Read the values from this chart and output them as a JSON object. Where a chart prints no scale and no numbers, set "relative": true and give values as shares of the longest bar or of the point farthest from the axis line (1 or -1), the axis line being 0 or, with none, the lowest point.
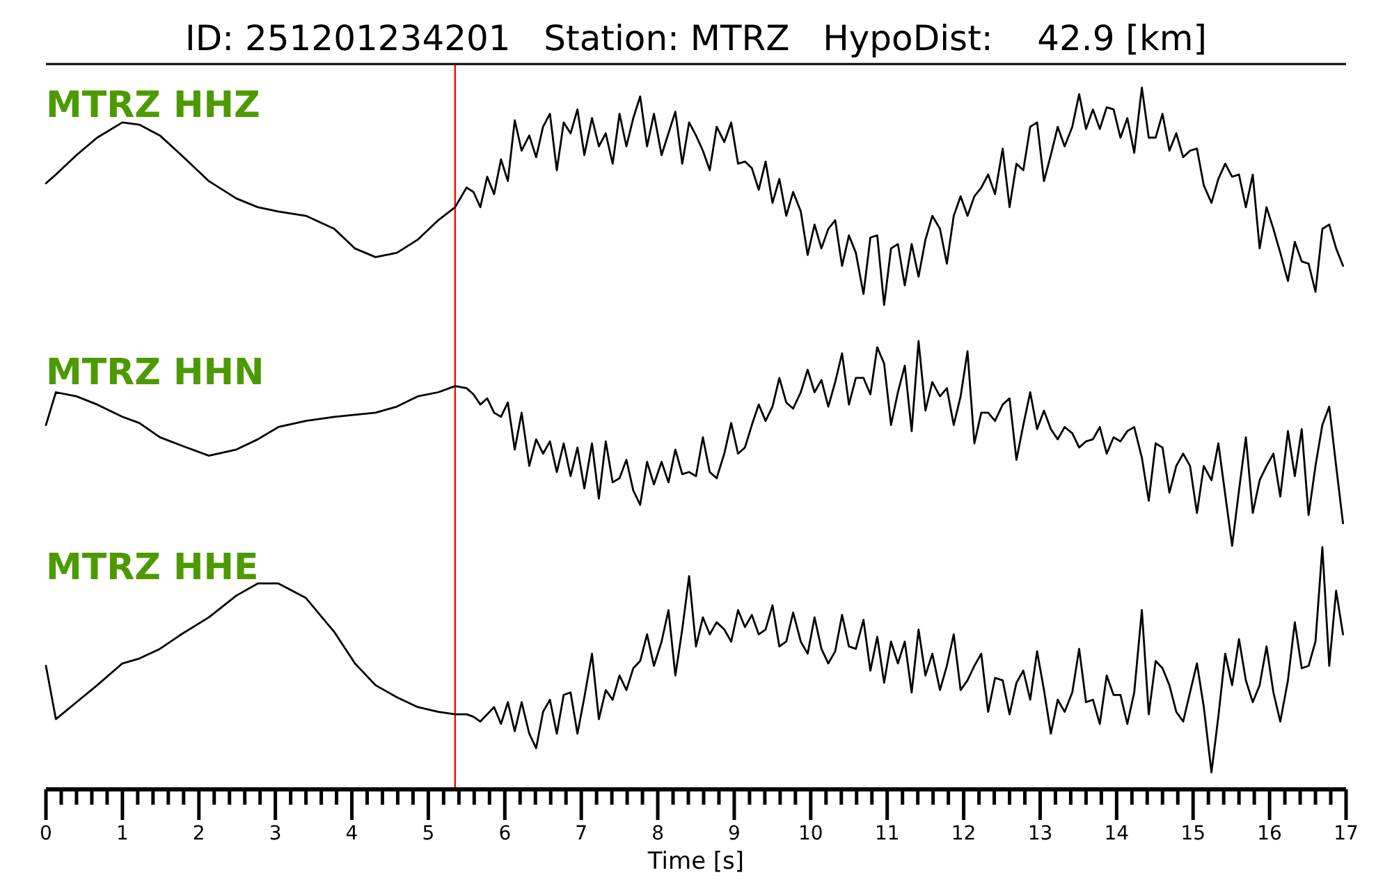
{
  "chart_data": [
    {
      "type": "line",
      "title": "ID: 251201234201   Station: MTRZ   HypoDist:    42.9 [km]",
      "relative": true,
      "xlim": [
        0,
        17
      ],
      "x": [
        0,
        0.13,
        0.4,
        0.67,
        1.0,
        1.22,
        1.49,
        1.77,
        2.13,
        2.49,
        2.77,
        3.04,
        3.4,
        3.77,
        4.04,
        4.31,
        4.59,
        4.86,
        5.13,
        5.35,
        5.5,
        5.59,
        5.68,
        5.77,
        5.86,
        5.95,
        6.04,
        6.13,
        6.22,
        6.32,
        6.41,
        6.5,
        6.59,
        6.68,
        6.77,
        6.86,
        6.95,
        7.04,
        7.14,
        7.23,
        7.32,
        7.41,
        7.5,
        7.59,
        7.68,
        7.77,
        7.86,
        7.95,
        8.05,
        8.14,
        8.23,
        8.32,
        8.41,
        8.5,
        8.59,
        8.68,
        8.77,
        8.87,
        8.96,
        9.05,
        9.14,
        9.23,
        9.32,
        9.41,
        9.5,
        9.59,
        9.68,
        9.77,
        9.87,
        9.96,
        10.05,
        10.14,
        10.23,
        10.32,
        10.41,
        10.5,
        10.59,
        10.69,
        10.78,
        10.87,
        10.96,
        11.05,
        11.14,
        11.23,
        11.32,
        11.41,
        11.5,
        11.59,
        11.69,
        11.78,
        11.87,
        11.96,
        12.05,
        12.14,
        12.23,
        12.32,
        12.41,
        12.51,
        12.6,
        12.69,
        12.78,
        12.87,
        12.96,
        13.05,
        13.14,
        13.23,
        13.32,
        13.42,
        13.51,
        13.6,
        13.69,
        13.78,
        13.87,
        13.96,
        14.05,
        14.14,
        14.23,
        14.33,
        14.42,
        14.51,
        14.6,
        14.69,
        14.78,
        14.87,
        14.96,
        15.05,
        15.14,
        15.24,
        15.33,
        15.42,
        15.51,
        15.6,
        15.69,
        15.78,
        15.87,
        15.96,
        16.05,
        16.14,
        16.24,
        16.33,
        16.42,
        16.51,
        16.6,
        16.69,
        16.78,
        16.87,
        16.96
      ],
      "series": [
        {
          "name": "MTRZ HHZ",
          "color": "#000000",
          "values": [
            0.56,
            0.6,
            0.69,
            0.77,
            0.84,
            0.83,
            0.78,
            0.69,
            0.57,
            0.49,
            0.45,
            0.43,
            0.41,
            0.35,
            0.26,
            0.22,
            0.24,
            0.3,
            0.39,
            0.45,
            0.54,
            0.52,
            0.45,
            0.59,
            0.51,
            0.67,
            0.57,
            0.85,
            0.71,
            0.78,
            0.68,
            0.82,
            0.88,
            0.62,
            0.84,
            0.79,
            0.9,
            0.69,
            0.86,
            0.73,
            0.79,
            0.65,
            0.88,
            0.73,
            0.86,
            0.96,
            0.73,
            0.88,
            0.69,
            0.79,
            0.89,
            0.65,
            0.84,
            0.78,
            0.71,
            0.62,
            0.82,
            0.75,
            0.84,
            0.65,
            0.66,
            0.63,
            0.53,
            0.66,
            0.47,
            0.58,
            0.41,
            0.52,
            0.43,
            0.23,
            0.37,
            0.26,
            0.35,
            0.39,
            0.18,
            0.32,
            0.24,
            0.05,
            0.31,
            0.32,
            0.0,
            0.26,
            0.28,
            0.09,
            0.28,
            0.13,
            0.3,
            0.41,
            0.35,
            0.19,
            0.41,
            0.5,
            0.41,
            0.5,
            0.54,
            0.6,
            0.51,
            0.72,
            0.45,
            0.65,
            0.62,
            0.82,
            0.84,
            0.57,
            0.69,
            0.82,
            0.73,
            0.82,
            0.97,
            0.81,
            0.9,
            0.81,
            0.91,
            0.9,
            0.77,
            0.86,
            0.7,
            1.0,
            0.77,
            0.77,
            0.88,
            0.71,
            0.79,
            0.68,
            0.71,
            0.72,
            0.55,
            0.47,
            0.58,
            0.65,
            0.59,
            0.6,
            0.45,
            0.6,
            0.26,
            0.45,
            0.35,
            0.24,
            0.11,
            0.29,
            0.2,
            0.19,
            0.06,
            0.35,
            0.37,
            0.26,
            0.18
          ]
        }
      ],
      "ref_lines": [
        {
          "axis": "x",
          "value": 5.35,
          "color": "#ff0000"
        }
      ]
    },
    {
      "type": "line",
      "relative": true,
      "xlim": [
        0,
        17
      ],
      "x": [
        0,
        0.13,
        0.4,
        0.67,
        1.0,
        1.22,
        1.49,
        1.77,
        2.13,
        2.49,
        2.77,
        3.04,
        3.4,
        3.77,
        4.04,
        4.31,
        4.59,
        4.86,
        5.13,
        5.35,
        5.5,
        5.59,
        5.68,
        5.77,
        5.86,
        5.95,
        6.04,
        6.13,
        6.22,
        6.32,
        6.41,
        6.5,
        6.59,
        6.68,
        6.77,
        6.86,
        6.95,
        7.04,
        7.14,
        7.23,
        7.32,
        7.41,
        7.5,
        7.59,
        7.68,
        7.77,
        7.86,
        7.95,
        8.05,
        8.14,
        8.23,
        8.32,
        8.41,
        8.5,
        8.59,
        8.68,
        8.77,
        8.87,
        8.96,
        9.05,
        9.14,
        9.23,
        9.32,
        9.41,
        9.5,
        9.59,
        9.68,
        9.77,
        9.87,
        9.96,
        10.05,
        10.14,
        10.23,
        10.32,
        10.41,
        10.5,
        10.59,
        10.69,
        10.78,
        10.87,
        10.96,
        11.05,
        11.14,
        11.23,
        11.32,
        11.41,
        11.5,
        11.59,
        11.69,
        11.78,
        11.87,
        11.96,
        12.05,
        12.14,
        12.23,
        12.32,
        12.41,
        12.51,
        12.6,
        12.69,
        12.78,
        12.87,
        12.96,
        13.05,
        13.14,
        13.23,
        13.32,
        13.42,
        13.51,
        13.6,
        13.69,
        13.78,
        13.87,
        13.96,
        14.05,
        14.14,
        14.23,
        14.33,
        14.42,
        14.51,
        14.6,
        14.69,
        14.78,
        14.87,
        14.96,
        15.05,
        15.14,
        15.24,
        15.33,
        15.42,
        15.51,
        15.6,
        15.69,
        15.78,
        15.87,
        15.96,
        16.05,
        16.14,
        16.24,
        16.33,
        16.42,
        16.51,
        16.6,
        16.69,
        16.78,
        16.87,
        16.96
      ],
      "series": [
        {
          "name": "MTRZ HHN",
          "color": "#000000",
          "values": [
            0.59,
            0.75,
            0.73,
            0.69,
            0.63,
            0.6,
            0.53,
            0.49,
            0.44,
            0.47,
            0.52,
            0.58,
            0.61,
            0.63,
            0.64,
            0.65,
            0.68,
            0.73,
            0.75,
            0.78,
            0.77,
            0.74,
            0.69,
            0.72,
            0.65,
            0.63,
            0.7,
            0.47,
            0.65,
            0.39,
            0.52,
            0.45,
            0.51,
            0.36,
            0.5,
            0.34,
            0.48,
            0.28,
            0.5,
            0.23,
            0.51,
            0.31,
            0.33,
            0.42,
            0.27,
            0.2,
            0.41,
            0.3,
            0.41,
            0.31,
            0.47,
            0.35,
            0.36,
            0.34,
            0.53,
            0.36,
            0.33,
            0.45,
            0.6,
            0.45,
            0.48,
            0.59,
            0.69,
            0.61,
            0.68,
            0.82,
            0.7,
            0.67,
            0.75,
            0.86,
            0.75,
            0.81,
            0.68,
            0.8,
            0.94,
            0.69,
            0.82,
            0.82,
            0.74,
            0.97,
            0.89,
            0.59,
            0.75,
            0.88,
            0.56,
            1.0,
            0.66,
            0.8,
            0.73,
            0.77,
            0.59,
            0.73,
            0.95,
            0.5,
            0.65,
            0.65,
            0.61,
            0.69,
            0.72,
            0.42,
            0.59,
            0.75,
            0.57,
            0.66,
            0.57,
            0.52,
            0.58,
            0.55,
            0.48,
            0.51,
            0.52,
            0.58,
            0.45,
            0.53,
            0.51,
            0.56,
            0.58,
            0.43,
            0.22,
            0.5,
            0.48,
            0.26,
            0.39,
            0.45,
            0.39,
            0.16,
            0.39,
            0.32,
            0.5,
            0.25,
            0.0,
            0.27,
            0.53,
            0.16,
            0.32,
            0.39,
            0.45,
            0.24,
            0.56,
            0.34,
            0.57,
            0.15,
            0.39,
            0.59,
            0.68,
            0.39,
            0.11
          ]
        }
      ],
      "ref_lines": [
        {
          "axis": "x",
          "value": 5.35,
          "color": "#ff0000"
        }
      ]
    },
    {
      "type": "line",
      "relative": true,
      "xlim": [
        0,
        17
      ],
      "xlabel": "Time [s]",
      "xticks": [
        0,
        {
          "value": 0.2,
          "label": null
        },
        {
          "value": 0.4,
          "label": null
        },
        {
          "value": 0.6,
          "label": null
        },
        {
          "value": 0.8,
          "label": null
        },
        1,
        {
          "value": 1.2,
          "label": null
        },
        {
          "value": 1.4,
          "label": null
        },
        {
          "value": 1.6,
          "label": null
        },
        {
          "value": 1.8,
          "label": null
        },
        2,
        {
          "value": 2.2,
          "label": null
        },
        {
          "value": 2.4,
          "label": null
        },
        {
          "value": 2.6,
          "label": null
        },
        {
          "value": 2.8,
          "label": null
        },
        3,
        {
          "value": 3.2,
          "label": null
        },
        {
          "value": 3.4,
          "label": null
        },
        {
          "value": 3.6,
          "label": null
        },
        {
          "value": 3.8,
          "label": null
        },
        4,
        {
          "value": 4.2,
          "label": null
        },
        {
          "value": 4.4,
          "label": null
        },
        {
          "value": 4.6,
          "label": null
        },
        {
          "value": 4.8,
          "label": null
        },
        5,
        {
          "value": 5.2,
          "label": null
        },
        {
          "value": 5.4,
          "label": null
        },
        {
          "value": 5.6,
          "label": null
        },
        {
          "value": 5.8,
          "label": null
        },
        6,
        {
          "value": 6.2,
          "label": null
        },
        {
          "value": 6.4,
          "label": null
        },
        {
          "value": 6.6,
          "label": null
        },
        {
          "value": 6.8,
          "label": null
        },
        7,
        {
          "value": 7.2,
          "label": null
        },
        {
          "value": 7.4,
          "label": null
        },
        {
          "value": 7.6,
          "label": null
        },
        {
          "value": 7.8,
          "label": null
        },
        8,
        {
          "value": 8.2,
          "label": null
        },
        {
          "value": 8.4,
          "label": null
        },
        {
          "value": 8.6,
          "label": null
        },
        {
          "value": 8.8,
          "label": null
        },
        9,
        {
          "value": 9.2,
          "label": null
        },
        {
          "value": 9.4,
          "label": null
        },
        {
          "value": 9.6,
          "label": null
        },
        {
          "value": 9.8,
          "label": null
        },
        10,
        {
          "value": 10.2,
          "label": null
        },
        {
          "value": 10.4,
          "label": null
        },
        {
          "value": 10.6,
          "label": null
        },
        {
          "value": 10.8,
          "label": null
        },
        11,
        {
          "value": 11.2,
          "label": null
        },
        {
          "value": 11.4,
          "label": null
        },
        {
          "value": 11.6,
          "label": null
        },
        {
          "value": 11.8,
          "label": null
        },
        12,
        {
          "value": 12.2,
          "label": null
        },
        {
          "value": 12.4,
          "label": null
        },
        {
          "value": 12.6,
          "label": null
        },
        {
          "value": 12.8,
          "label": null
        },
        13,
        {
          "value": 13.2,
          "label": null
        },
        {
          "value": 13.4,
          "label": null
        },
        {
          "value": 13.6,
          "label": null
        },
        {
          "value": 13.8,
          "label": null
        },
        14,
        {
          "value": 14.2,
          "label": null
        },
        {
          "value": 14.4,
          "label": null
        },
        {
          "value": 14.6,
          "label": null
        },
        {
          "value": 14.8,
          "label": null
        },
        15,
        {
          "value": 15.2,
          "label": null
        },
        {
          "value": 15.4,
          "label": null
        },
        {
          "value": 15.6,
          "label": null
        },
        {
          "value": 15.8,
          "label": null
        },
        16,
        {
          "value": 16.2,
          "label": null
        },
        {
          "value": 16.4,
          "label": null
        },
        {
          "value": 16.6,
          "label": null
        },
        {
          "value": 16.8,
          "label": null
        },
        17
      ],
      "x": [
        0,
        0.13,
        0.4,
        0.67,
        1.0,
        1.22,
        1.49,
        1.77,
        2.13,
        2.49,
        2.77,
        3.04,
        3.4,
        3.77,
        4.04,
        4.31,
        4.59,
        4.86,
        5.13,
        5.35,
        5.5,
        5.59,
        5.68,
        5.77,
        5.86,
        5.95,
        6.04,
        6.13,
        6.22,
        6.32,
        6.41,
        6.5,
        6.59,
        6.68,
        6.77,
        6.86,
        6.95,
        7.04,
        7.14,
        7.23,
        7.32,
        7.41,
        7.5,
        7.59,
        7.68,
        7.77,
        7.86,
        7.95,
        8.05,
        8.14,
        8.23,
        8.32,
        8.41,
        8.5,
        8.59,
        8.68,
        8.77,
        8.87,
        8.96,
        9.05,
        9.14,
        9.23,
        9.32,
        9.41,
        9.5,
        9.59,
        9.68,
        9.77,
        9.87,
        9.96,
        10.05,
        10.14,
        10.23,
        10.32,
        10.41,
        10.5,
        10.59,
        10.69,
        10.78,
        10.87,
        10.96,
        11.05,
        11.14,
        11.23,
        11.32,
        11.41,
        11.5,
        11.59,
        11.69,
        11.78,
        11.87,
        11.96,
        12.05,
        12.14,
        12.23,
        12.32,
        12.41,
        12.51,
        12.6,
        12.69,
        12.78,
        12.87,
        12.96,
        13.05,
        13.14,
        13.23,
        13.32,
        13.42,
        13.51,
        13.6,
        13.69,
        13.78,
        13.87,
        13.96,
        14.05,
        14.14,
        14.23,
        14.33,
        14.42,
        14.51,
        14.6,
        14.69,
        14.78,
        14.87,
        14.96,
        15.05,
        15.14,
        15.24,
        15.33,
        15.42,
        15.51,
        15.6,
        15.69,
        15.78,
        15.87,
        15.96,
        16.05,
        16.14,
        16.24,
        16.33,
        16.42,
        16.51,
        16.6,
        16.69,
        16.78,
        16.87,
        16.96
      ],
      "series": [
        {
          "name": "MTRZ HHE",
          "color": "#000000",
          "values": [
            0.51,
            0.29,
            0.36,
            0.43,
            0.52,
            0.54,
            0.58,
            0.64,
            0.71,
            0.8,
            0.85,
            0.85,
            0.79,
            0.65,
            0.52,
            0.43,
            0.38,
            0.34,
            0.32,
            0.31,
            0.31,
            0.3,
            0.28,
            0.31,
            0.34,
            0.27,
            0.36,
            0.24,
            0.36,
            0.23,
            0.17,
            0.32,
            0.37,
            0.23,
            0.39,
            0.4,
            0.23,
            0.38,
            0.56,
            0.29,
            0.41,
            0.37,
            0.47,
            0.41,
            0.5,
            0.53,
            0.64,
            0.51,
            0.61,
            0.74,
            0.47,
            0.66,
            0.88,
            0.59,
            0.71,
            0.64,
            0.69,
            0.66,
            0.61,
            0.74,
            0.67,
            0.72,
            0.64,
            0.66,
            0.76,
            0.59,
            0.61,
            0.73,
            0.61,
            0.56,
            0.71,
            0.58,
            0.52,
            0.57,
            0.72,
            0.59,
            0.58,
            0.7,
            0.49,
            0.63,
            0.44,
            0.61,
            0.52,
            0.61,
            0.4,
            0.66,
            0.47,
            0.56,
            0.41,
            0.51,
            0.64,
            0.41,
            0.45,
            0.51,
            0.56,
            0.32,
            0.46,
            0.45,
            0.31,
            0.44,
            0.49,
            0.37,
            0.57,
            0.41,
            0.23,
            0.37,
            0.32,
            0.4,
            0.58,
            0.36,
            0.37,
            0.27,
            0.47,
            0.39,
            0.39,
            0.27,
            0.4,
            0.74,
            0.31,
            0.53,
            0.5,
            0.43,
            0.32,
            0.28,
            0.4,
            0.52,
            0.34,
            0.07,
            0.3,
            0.56,
            0.43,
            0.62,
            0.45,
            0.36,
            0.43,
            0.59,
            0.4,
            0.28,
            0.45,
            0.69,
            0.5,
            0.51,
            0.61,
            1.0,
            0.51,
            0.82,
            0.64
          ]
        }
      ],
      "ref_lines": [
        {
          "axis": "x",
          "value": 5.35,
          "color": "#ff0000"
        }
      ]
    }
  ]
}
